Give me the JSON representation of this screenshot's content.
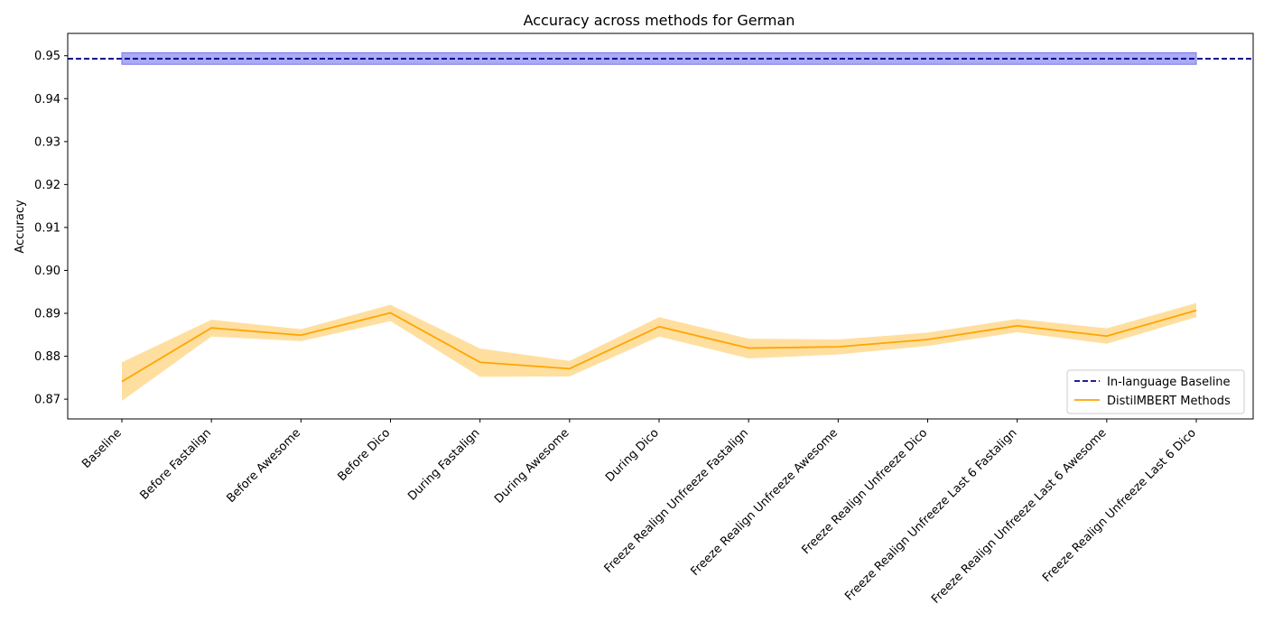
{
  "chart_data": {
    "type": "line",
    "title": "Accuracy across methods for German",
    "xlabel": "",
    "ylabel": "Accuracy",
    "ylim": [
      0.8654,
      0.9552
    ],
    "yticks": [
      "0.87",
      "0.88",
      "0.89",
      "0.90",
      "0.91",
      "0.92",
      "0.93",
      "0.94",
      "0.95"
    ],
    "grid": false,
    "legend_position": "bottom-right",
    "categories": [
      "Baseline",
      "Before Fastalign",
      "Before Awesome",
      "Before Dico",
      "During Fastalign",
      "During Awesome",
      "During Dico",
      "Freeze Realign Unfreeze Fastalign",
      "Freeze Realign Unfreeze Awesome",
      "Freeze Realign Unfreeze Dico",
      "Freeze Realign Unfreeze Last 6 Fastalign",
      "Freeze Realign Unfreeze Last 6 Awesome",
      "Freeze Realign Unfreeze Last 6 Dico"
    ],
    "series": [
      {
        "name": "DistilMBERT Methods",
        "color": "#ffa500",
        "band_color": "#ffdfa0",
        "values": [
          0.8741,
          0.8866,
          0.8849,
          0.8901,
          0.8786,
          0.8771,
          0.8869,
          0.8819,
          0.8822,
          0.8839,
          0.8871,
          0.8847,
          0.8907
        ],
        "lower": [
          0.8696,
          0.8846,
          0.8835,
          0.8882,
          0.8752,
          0.8753,
          0.8846,
          0.8795,
          0.8804,
          0.8824,
          0.8856,
          0.8829,
          0.8891
        ],
        "upper": [
          0.8786,
          0.8885,
          0.8863,
          0.892,
          0.8818,
          0.8789,
          0.8891,
          0.8841,
          0.8839,
          0.8855,
          0.8887,
          0.8865,
          0.8924
        ]
      }
    ],
    "baseline": {
      "name": "In-language Baseline",
      "value": 0.9493,
      "lower": 0.948,
      "upper": 0.9507,
      "color": "#00008b",
      "band_color": "#aaaaf5"
    }
  }
}
